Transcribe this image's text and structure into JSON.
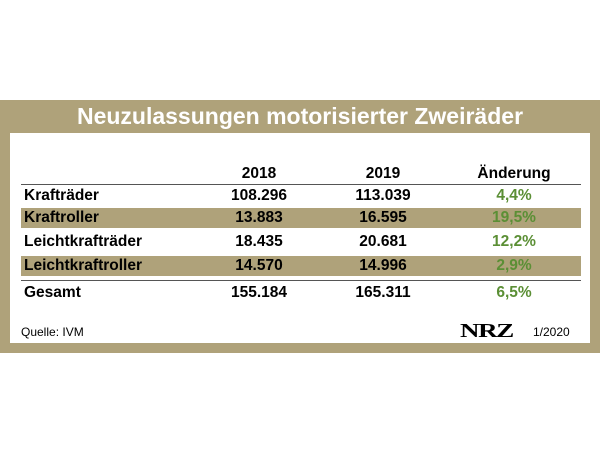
{
  "chart_data": {
    "type": "table",
    "title": "Neuzulassungen motorisierter Zweiräder",
    "columns": [
      "",
      "2018",
      "2019",
      "Änderung"
    ],
    "rows": [
      {
        "label": "Krafträder",
        "y2018": "108.296",
        "y2019": "113.039",
        "change": "4,4%"
      },
      {
        "label": "Kraftroller",
        "y2018": "13.883",
        "y2019": "16.595",
        "change": "19,5%"
      },
      {
        "label": "Leichtkrafträder",
        "y2018": "18.435",
        "y2019": "20.681",
        "change": "12,2%"
      },
      {
        "label": "Leichtkraftroller",
        "y2018": "14.570",
        "y2019": "14.996",
        "change": "2,9%"
      }
    ],
    "total": {
      "label": "Gesamt",
      "y2018": "155.184",
      "y2019": "165.311",
      "change": "6,5%"
    }
  },
  "footer": {
    "source": "Quelle: IVM",
    "logo_text": "NRZ",
    "date": "1/2020"
  },
  "colors": {
    "frame": "#afa27a",
    "change_text": "#5b8f35"
  }
}
